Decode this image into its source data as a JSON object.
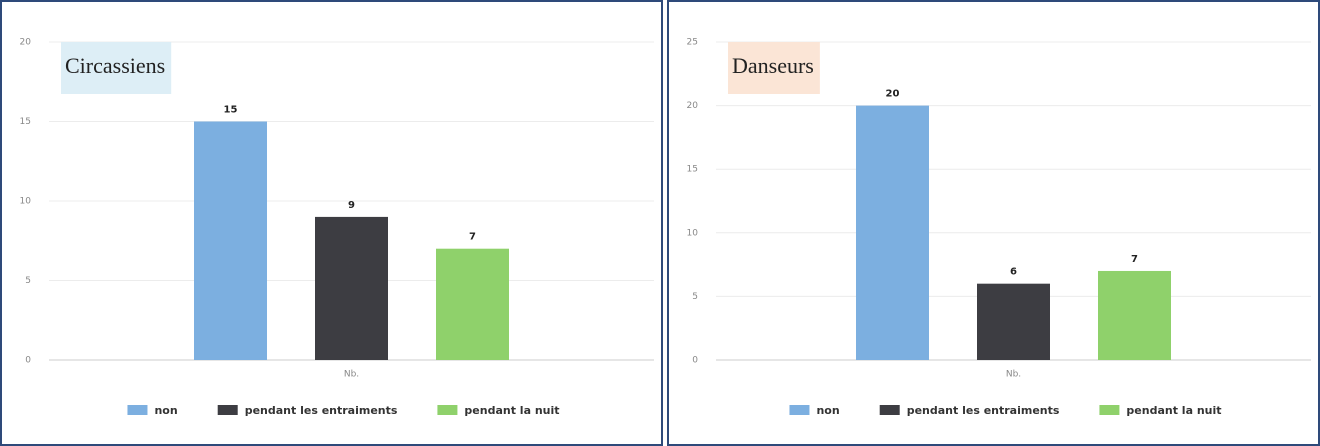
{
  "chart_data": [
    {
      "type": "bar",
      "title": "Circassiens",
      "categories": [
        "Nb."
      ],
      "series": [
        {
          "name": "non",
          "color": "#7cafe0",
          "values": [
            15
          ]
        },
        {
          "name": "pendant les entraiments",
          "color": "#3d3d42",
          "values": [
            9
          ]
        },
        {
          "name": "pendant la nuit",
          "color": "#8fd16b",
          "values": [
            7
          ]
        }
      ],
      "ylim": [
        0,
        20
      ],
      "yticks": [
        0,
        5,
        10,
        15,
        20
      ],
      "grid": true,
      "title_color": "#ddeef6"
    },
    {
      "type": "bar",
      "title": "Danseurs",
      "categories": [
        "Nb."
      ],
      "series": [
        {
          "name": "non",
          "color": "#7cafe0",
          "values": [
            20
          ]
        },
        {
          "name": "pendant les entraiments",
          "color": "#3d3d42",
          "values": [
            6
          ]
        },
        {
          "name": "pendant la nuit",
          "color": "#8fd16b",
          "values": [
            7
          ]
        }
      ],
      "ylim": [
        0,
        25
      ],
      "yticks": [
        0,
        5,
        10,
        15,
        20,
        25
      ],
      "grid": true,
      "title_color": "#fbe5d6"
    }
  ]
}
